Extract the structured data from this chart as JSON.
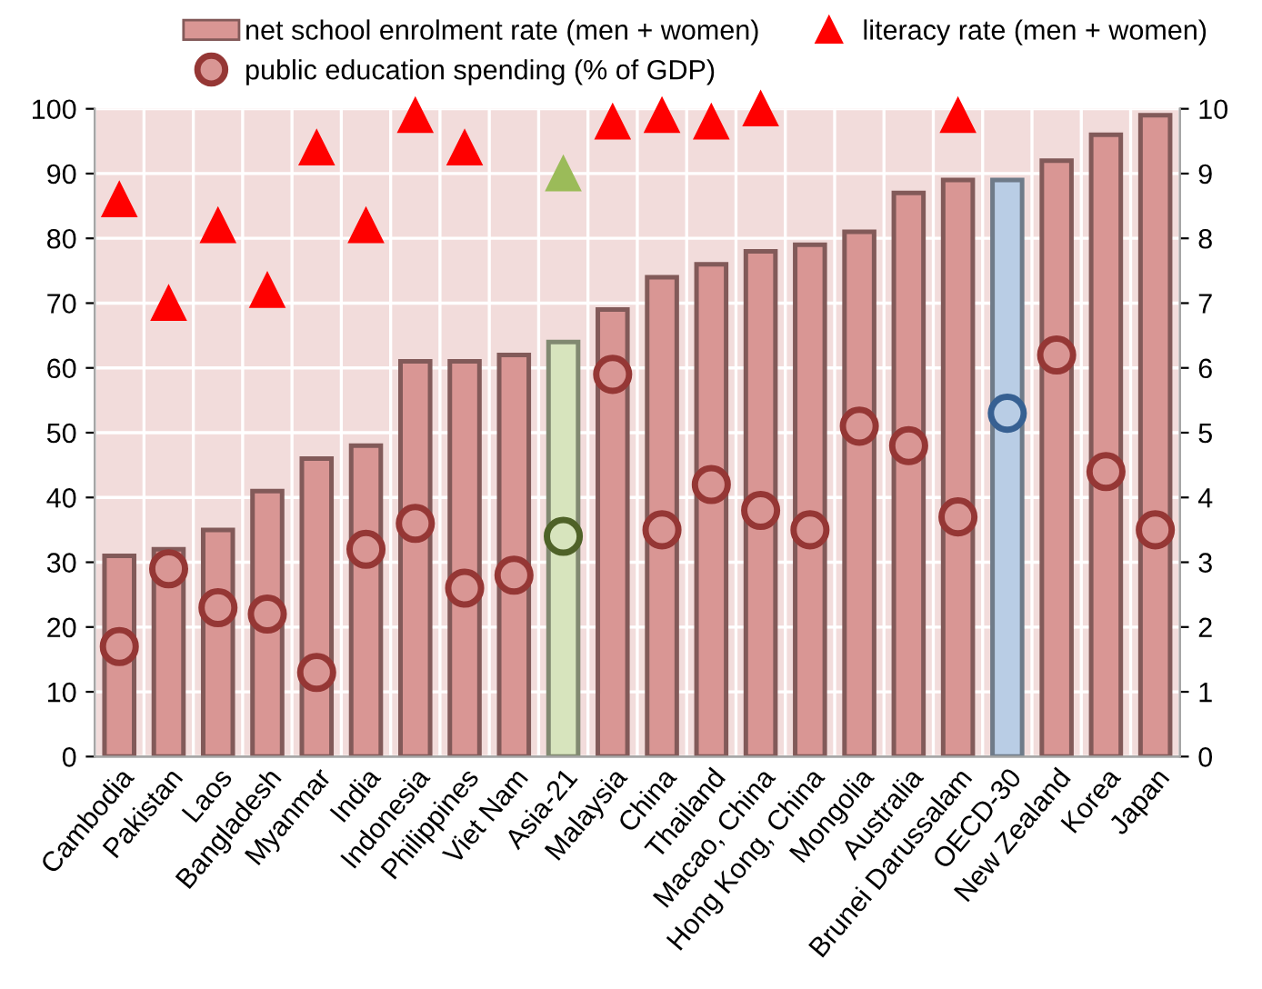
{
  "chart_data": {
    "type": "bar",
    "categories": [
      "Cambodia",
      "Pakistan",
      "Laos",
      "Bangladesh",
      "Myanmar",
      "India",
      "Indonesia",
      "Philippines",
      "Viet Nam",
      "Asia-21",
      "Malaysia",
      "China",
      "Thailand",
      "Macao, China",
      "Hong Kong, China",
      "Mongolia",
      "Australia",
      "Brunei Darussalam",
      "OECD-30",
      "New Zealand",
      "Korea",
      "Japan"
    ],
    "series": [
      {
        "name": "net school enrolment rate (men + women)",
        "color": "#d99694",
        "colors": [
          "#d99694",
          "#d99694",
          "#d99694",
          "#d99694",
          "#d99694",
          "#d99694",
          "#d99694",
          "#d99694",
          "#d99694",
          "#d7e4bd",
          "#d99694",
          "#d99694",
          "#d99694",
          "#d99694",
          "#d99694",
          "#d99694",
          "#d99694",
          "#d99694",
          "#b9cde5",
          "#d99694",
          "#d99694",
          "#d99694"
        ],
        "values": [
          31,
          32,
          35,
          41,
          46,
          48,
          61,
          61,
          62,
          64,
          69,
          74,
          76,
          78,
          79,
          81,
          87,
          89,
          89,
          92,
          96,
          99
        ]
      },
      {
        "name": "literacy rate (men + women)",
        "type": "scatter",
        "marker": "triangle",
        "color": "#ff0000",
        "colors": [
          "#ff0000",
          "#ff0000",
          "#ff0000",
          "#ff0000",
          "#ff0000",
          "#ff0000",
          "#ff0000",
          "#ff0000",
          "#ff0000",
          "#9bbb59",
          "#ff0000",
          "#ff0000",
          "#ff0000",
          "#ff0000",
          "#ff0000",
          "#ff0000",
          "#ff0000",
          "#ff0000",
          "#ff0000",
          "#ff0000",
          "#ff0000",
          "#ff0000"
        ],
        "values": [
          86,
          70,
          82,
          72,
          94,
          82,
          99,
          94,
          null,
          90,
          98,
          99,
          98,
          100,
          null,
          null,
          null,
          99,
          null,
          null,
          null,
          null
        ]
      },
      {
        "name": "public education spending (% of GDP)",
        "type": "scatter",
        "marker": "circle",
        "axis": "y2",
        "color": "#953735",
        "colors": [
          "#953735",
          "#953735",
          "#953735",
          "#953735",
          "#953735",
          "#953735",
          "#953735",
          "#953735",
          "#953735",
          "#4f6228",
          "#953735",
          "#953735",
          "#953735",
          "#953735",
          "#953735",
          "#953735",
          "#953735",
          "#953735",
          "#376092",
          "#953735",
          "#953735",
          "#953735"
        ],
        "values": [
          1.7,
          2.9,
          2.3,
          2.2,
          1.3,
          3.2,
          3.6,
          2.6,
          2.8,
          3.4,
          5.9,
          3.5,
          4.2,
          3.8,
          3.5,
          5.1,
          4.8,
          3.7,
          5.3,
          6.2,
          4.4,
          3.5
        ]
      }
    ],
    "ylim": [
      0,
      100
    ],
    "yticks": [
      0,
      10,
      20,
      30,
      40,
      50,
      60,
      70,
      80,
      90,
      100
    ],
    "y2lim": [
      0,
      10
    ],
    "y2ticks": [
      0,
      1,
      2,
      3,
      4,
      5,
      6,
      7,
      8,
      9,
      10
    ],
    "grid": true,
    "legend": "top"
  }
}
